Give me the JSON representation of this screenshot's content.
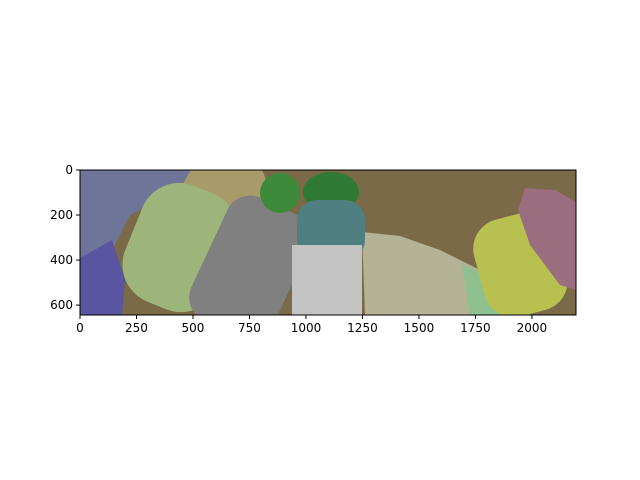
{
  "chart_data": {
    "type": "image",
    "xlim": [
      0,
      2195
    ],
    "ylim": [
      644,
      0
    ],
    "xticks": [
      0,
      250,
      500,
      750,
      1000,
      1250,
      1500,
      1750,
      2000
    ],
    "yticks": [
      0,
      200,
      400,
      600
    ]
  }
}
